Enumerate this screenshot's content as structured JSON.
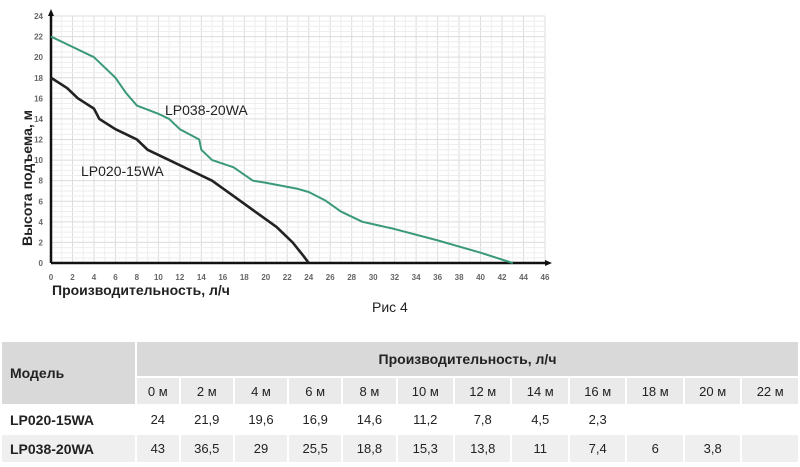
{
  "chart_data": {
    "type": "line",
    "xlabel": "Производительность, л/ч",
    "ylabel": "Высота подъема, м",
    "caption": "Рис 4",
    "xlim": [
      0,
      46
    ],
    "ylim": [
      0,
      24
    ],
    "xticks": [
      0,
      2,
      4,
      6,
      8,
      10,
      12,
      14,
      16,
      18,
      20,
      22,
      24,
      26,
      28,
      30,
      32,
      34,
      36,
      38,
      40,
      42,
      44,
      46
    ],
    "yticks": [
      0,
      2,
      4,
      6,
      8,
      10,
      12,
      14,
      16,
      18,
      20,
      22,
      24
    ],
    "grid": true,
    "series": [
      {
        "name": "LP020-15WA",
        "color": "#222222",
        "points": [
          [
            0,
            18
          ],
          [
            1.5,
            17
          ],
          [
            2.5,
            16
          ],
          [
            4,
            15
          ],
          [
            4.5,
            14
          ],
          [
            6,
            13
          ],
          [
            8,
            12
          ],
          [
            9,
            11
          ],
          [
            11,
            10
          ],
          [
            13,
            9
          ],
          [
            15,
            8
          ],
          [
            17,
            6.5
          ],
          [
            19,
            5
          ],
          [
            21,
            3.5
          ],
          [
            22.5,
            2
          ],
          [
            23.5,
            0.7
          ],
          [
            24,
            0
          ]
        ]
      },
      {
        "name": "LP038-20WA",
        "color": "#3a9a78",
        "points": [
          [
            0,
            22
          ],
          [
            2,
            21
          ],
          [
            4,
            20
          ],
          [
            5,
            19
          ],
          [
            6,
            18
          ],
          [
            7,
            16.5
          ],
          [
            8,
            15.3
          ],
          [
            10,
            14.5
          ],
          [
            11,
            14
          ],
          [
            12,
            13
          ],
          [
            13.8,
            12
          ],
          [
            14,
            11
          ],
          [
            15,
            10
          ],
          [
            17,
            9.3
          ],
          [
            18.8,
            8
          ],
          [
            20,
            7.8
          ],
          [
            23,
            7.2
          ],
          [
            24,
            6.9
          ],
          [
            25.5,
            6.1
          ],
          [
            27,
            5
          ],
          [
            29,
            4
          ],
          [
            32,
            3.3
          ],
          [
            36,
            2.2
          ],
          [
            40,
            1
          ],
          [
            43,
            0
          ]
        ]
      }
    ]
  },
  "table": {
    "model_header": "Модель",
    "group_header": "Производительность, л/ч",
    "columns": [
      "0 м",
      "2 м",
      "4 м",
      "6 м",
      "8 м",
      "10 м",
      "12 м",
      "14 м",
      "16 м",
      "18 м",
      "20 м",
      "22 м"
    ],
    "rows": [
      {
        "model": "LP020-15WA",
        "values": [
          "24",
          "21,9",
          "19,6",
          "16,9",
          "14,6",
          "11,2",
          "7,8",
          "4,5",
          "2,3",
          "",
          "",
          ""
        ]
      },
      {
        "model": "LP038-20WA",
        "values": [
          "43",
          "36,5",
          "29",
          "25,5",
          "18,8",
          "15,3",
          "13,8",
          "11",
          "7,4",
          "6",
          "3,8",
          ""
        ]
      }
    ]
  }
}
